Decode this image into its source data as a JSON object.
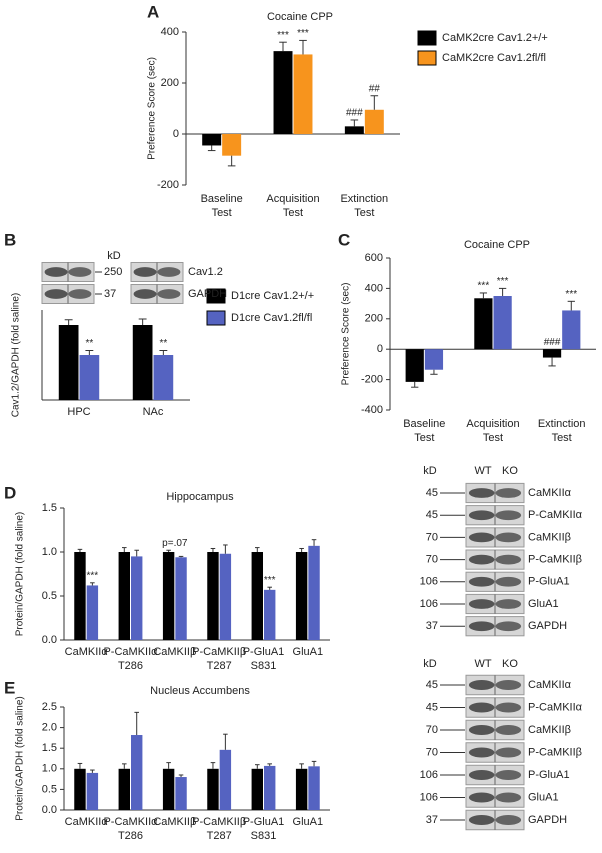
{
  "chart_data": [
    {
      "panel": "A",
      "type": "bar",
      "title": "Cocaine CPP",
      "y_label": "Preference Score (sec)",
      "categories": [
        [
          "Baseline",
          "Test"
        ],
        [
          "Acquisition",
          "Test"
        ],
        [
          "Extinction",
          "Test"
        ]
      ],
      "series": [
        {
          "name": "CaMK2cre Cav1.2+/+",
          "color": "#000000",
          "values": [
            -45,
            325,
            30
          ],
          "errors": [
            20,
            35,
            25
          ],
          "annotations": [
            null,
            "***",
            "###"
          ]
        },
        {
          "name": "CaMK2cre Cav1.2fl/fl",
          "color": "#f7941d",
          "values": [
            -85,
            312,
            95
          ],
          "errors": [
            40,
            55,
            55
          ],
          "annotations": [
            null,
            "***",
            "##"
          ]
        }
      ],
      "ylim": [
        -200,
        400
      ],
      "yticks": [
        -200,
        0,
        200,
        400
      ],
      "legend": "right"
    },
    {
      "panel": "B",
      "type": "bar",
      "y_label": "Cav1.2/GAPDH (fold saline)",
      "categories": [
        [
          "HPC"
        ],
        [
          "NAc"
        ]
      ],
      "series": [
        {
          "name": "D1cre Cav1.2+/+",
          "color": "#000000",
          "values": [
            1,
            1
          ],
          "errors": [
            0.07,
            0.08
          ],
          "annotations": [
            null,
            null
          ]
        },
        {
          "name": "D1cre Cav1.2fl/fl",
          "color": "#5563c1",
          "values": [
            0.6,
            0.6
          ],
          "errors": [
            0.06,
            0.06
          ],
          "annotations": [
            "**",
            "**"
          ]
        }
      ],
      "ylim": [
        0,
        1.2
      ],
      "legend": "right",
      "blot": {
        "kd_header": "kD",
        "rows": [
          {
            "kd": "250",
            "label": "Cav1.2"
          },
          {
            "kd": "37",
            "label": "GAPDH"
          }
        ]
      }
    },
    {
      "panel": "C",
      "type": "bar",
      "title": "Cocaine CPP",
      "y_label": "Preference Score (sec)",
      "categories": [
        [
          "Baseline",
          "Test"
        ],
        [
          "Acquisition",
          "Test"
        ],
        [
          "Extinction",
          "Test"
        ]
      ],
      "series": [
        {
          "color": "#000000",
          "values": [
            -215,
            335,
            -55
          ],
          "errors": [
            35,
            35,
            55
          ],
          "annotations": [
            null,
            "***",
            "###"
          ]
        },
        {
          "color": "#5563c1",
          "values": [
            -135,
            350,
            255
          ],
          "errors": [
            30,
            50,
            60
          ],
          "annotations": [
            null,
            "***",
            "***"
          ]
        }
      ],
      "ylim": [
        -400,
        600
      ],
      "yticks": [
        -400,
        -200,
        0,
        200,
        400,
        600
      ]
    },
    {
      "panel": "D",
      "type": "bar",
      "title": "Hippocampus",
      "y_label": "Protein/GAPDH (fold saline)",
      "categories": [
        [
          "CaMKIIα"
        ],
        [
          "P-CaMKIIα",
          "T286"
        ],
        [
          "CaMKIIβ"
        ],
        [
          "P-CaMKIIβ",
          "T287"
        ],
        [
          "P-GluA1",
          "S831"
        ],
        [
          "GluA1"
        ]
      ],
      "series": [
        {
          "color": "#000000",
          "values": [
            1,
            1,
            1,
            1,
            1,
            1
          ],
          "errors": [
            0.03,
            0.05,
            0.02,
            0.04,
            0.05,
            0.04
          ],
          "annotations": [
            null,
            null,
            null,
            null,
            null,
            null
          ]
        },
        {
          "color": "#5563c1",
          "values": [
            0.62,
            0.95,
            0.94,
            0.98,
            0.57,
            1.07
          ],
          "errors": [
            0.03,
            0.07,
            0.01,
            0.1,
            0.03,
            0.07
          ],
          "annotations": [
            "***",
            null,
            null,
            null,
            "***",
            null
          ]
        }
      ],
      "group_annotations": [
        null,
        null,
        "p=.07",
        null,
        null,
        null
      ],
      "ylim": [
        0,
        1.5
      ],
      "yticks": [
        {
          "value": 0,
          "label": "0.0"
        },
        {
          "value": 0.5,
          "label": "0.5"
        },
        {
          "value": 1,
          "label": "1.0"
        },
        {
          "value": 1.5,
          "label": "1.5"
        }
      ],
      "blot": {
        "kd_header": "kD",
        "columns": [
          "WT",
          "KO"
        ],
        "rows": [
          {
            "kd": "45",
            "label": "CaMKIIα"
          },
          {
            "kd": "45",
            "label": "P-CaMKIIα"
          },
          {
            "kd": "70",
            "label": "CaMKIIβ"
          },
          {
            "kd": "70",
            "label": "P-CaMKIIβ"
          },
          {
            "kd": "106",
            "label": "P-GluA1"
          },
          {
            "kd": "106",
            "label": "GluA1"
          },
          {
            "kd": "37",
            "label": "GAPDH"
          }
        ]
      }
    },
    {
      "panel": "E",
      "type": "bar",
      "title": "Nucleus Accumbens",
      "y_label": "Protein/GAPDH (fold saline)",
      "categories": [
        [
          "CaMKIIα"
        ],
        [
          "P-CaMKIIα",
          "T286"
        ],
        [
          "CaMKIIβ"
        ],
        [
          "P-CaMKIIβ",
          "T287"
        ],
        [
          "P-GluA1",
          "S831"
        ],
        [
          "GluA1"
        ]
      ],
      "series": [
        {
          "color": "#000000",
          "values": [
            1,
            1,
            1,
            1,
            1,
            1
          ],
          "errors": [
            0.13,
            0.12,
            0.15,
            0.15,
            0.1,
            0.12
          ],
          "annotations": [
            null,
            null,
            null,
            null,
            null,
            null
          ]
        },
        {
          "color": "#5563c1",
          "values": [
            0.9,
            1.82,
            0.8,
            1.46,
            1.07,
            1.06
          ],
          "errors": [
            0.07,
            0.55,
            0.05,
            0.38,
            0.05,
            0.12
          ],
          "annotations": [
            null,
            null,
            null,
            null,
            null,
            null
          ]
        }
      ],
      "ylim": [
        0,
        2.5
      ],
      "yticks": [
        {
          "value": 0,
          "label": "0.0"
        },
        {
          "value": 0.5,
          "label": "0.5"
        },
        {
          "value": 1,
          "label": "1.0"
        },
        {
          "value": 1.5,
          "label": "1.5"
        },
        {
          "value": 2,
          "label": "2.0"
        },
        {
          "value": 2.5,
          "label": "2.5"
        }
      ],
      "blot": {
        "kd_header": "kD",
        "columns": [
          "WT",
          "KO"
        ],
        "rows": [
          {
            "kd": "45",
            "label": "CaMKIIα"
          },
          {
            "kd": "45",
            "label": "P-CaMKIIα"
          },
          {
            "kd": "70",
            "label": "CaMKIIβ"
          },
          {
            "kd": "70",
            "label": "P-CaMKIIβ"
          },
          {
            "kd": "106",
            "label": "P-GluA1"
          },
          {
            "kd": "106",
            "label": "GluA1"
          },
          {
            "kd": "37",
            "label": "GAPDH"
          }
        ]
      }
    }
  ]
}
